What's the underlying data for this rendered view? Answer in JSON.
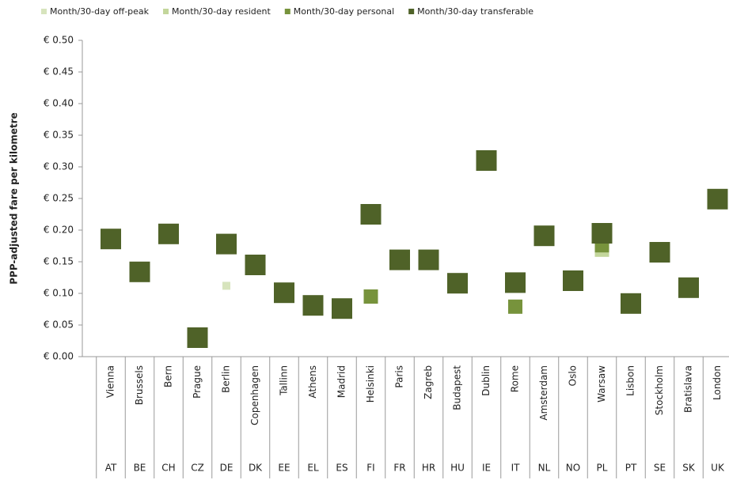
{
  "chart_data": {
    "type": "scatter",
    "y_axis_label": "PPP-adjusted fare per kilometre",
    "categories": [
      "Vienna",
      "Brussels",
      "Bern",
      "Prague",
      "Berlin",
      "Copenhagen",
      "Tallinn",
      "Athens",
      "Madrid",
      "Helsinki",
      "Paris",
      "Zagreb",
      "Budapest",
      "Dublin",
      "Rome",
      "Amsterdam",
      "Oslo",
      "Warsaw",
      "Lisbon",
      "Stockholm",
      "Bratislava",
      "London"
    ],
    "country_codes": [
      "AT",
      "BE",
      "CH",
      "CZ",
      "DE",
      "DK",
      "EE",
      "EL",
      "ES",
      "FI",
      "FR",
      "HR",
      "HU",
      "IE",
      "IT",
      "NL",
      "NO",
      "PL",
      "PT",
      "SE",
      "SK",
      "UK"
    ],
    "series": [
      {
        "name": "Month/30-day off-peak",
        "color": "#d7e4bd",
        "values": [
          null,
          null,
          null,
          null,
          0.112,
          null,
          null,
          null,
          null,
          null,
          null,
          null,
          null,
          null,
          null,
          null,
          null,
          null,
          null,
          null,
          null,
          null
        ]
      },
      {
        "name": "Month/30-day resident",
        "color": "#c3d69b",
        "values": [
          null,
          null,
          null,
          null,
          null,
          null,
          null,
          null,
          null,
          null,
          null,
          null,
          null,
          null,
          null,
          null,
          null,
          0.169,
          null,
          null,
          null,
          null
        ]
      },
      {
        "name": "Month/30-day personal",
        "color": "#77933c",
        "values": [
          null,
          null,
          null,
          null,
          null,
          null,
          null,
          null,
          null,
          0.095,
          null,
          null,
          null,
          null,
          0.079,
          null,
          null,
          0.176,
          null,
          null,
          null,
          null
        ]
      },
      {
        "name": "Month/30-day transferable",
        "color": "#4f6228",
        "values": [
          0.186,
          0.134,
          0.194,
          0.03,
          0.178,
          0.145,
          0.101,
          0.081,
          0.076,
          0.225,
          0.153,
          0.153,
          0.116,
          0.31,
          0.117,
          0.191,
          0.12,
          0.195,
          0.084,
          0.165,
          0.109,
          0.249
        ]
      }
    ],
    "ylim": [
      0,
      0.5
    ],
    "yticks": [
      {
        "value": 0,
        "label": "€ 0.00"
      },
      {
        "value": 0.05,
        "label": "€ 0.05"
      },
      {
        "value": 0.1,
        "label": "€ 0.10"
      },
      {
        "value": 0.15,
        "label": "€ 0.15"
      },
      {
        "value": 0.2,
        "label": "€ 0.20"
      },
      {
        "value": 0.25,
        "label": "€ 0.25"
      },
      {
        "value": 0.3,
        "label": "€ 0.30"
      },
      {
        "value": 0.35,
        "label": "€ 0.35"
      },
      {
        "value": 0.4,
        "label": "€ 0.40"
      },
      {
        "value": 0.45,
        "label": "€ 0.45"
      },
      {
        "value": 0.5,
        "label": "€ 0.50"
      }
    ],
    "legend": "top"
  }
}
